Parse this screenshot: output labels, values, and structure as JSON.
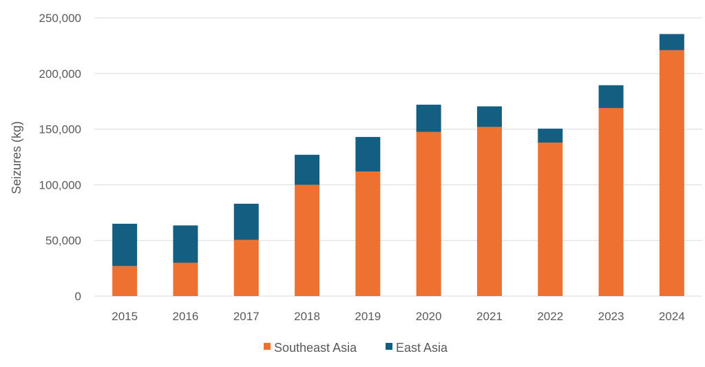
{
  "chart_data": {
    "type": "bar",
    "stacked": true,
    "categories": [
      "2015",
      "2016",
      "2017",
      "2018",
      "2019",
      "2020",
      "2021",
      "2022",
      "2023",
      "2024"
    ],
    "series": [
      {
        "name": "Southeast Asia",
        "color": "#ED7232",
        "values": [
          27000,
          30000,
          50500,
          100000,
          112000,
          147500,
          152000,
          138000,
          169000,
          221000
        ]
      },
      {
        "name": "East Asia",
        "color": "#145E82",
        "values": [
          38000,
          33500,
          32500,
          27000,
          31000,
          24500,
          18500,
          12500,
          20500,
          14500
        ]
      }
    ],
    "ylabel": "Seizures (kg)",
    "xlabel": "",
    "ylim": [
      0,
      250000
    ],
    "yticks": [
      0,
      50000,
      100000,
      150000,
      200000,
      250000
    ],
    "ytick_labels": [
      "0",
      "50,000",
      "100,000",
      "150,000",
      "200,000",
      "250,000"
    ],
    "grid": true,
    "legend_position": "bottom"
  }
}
